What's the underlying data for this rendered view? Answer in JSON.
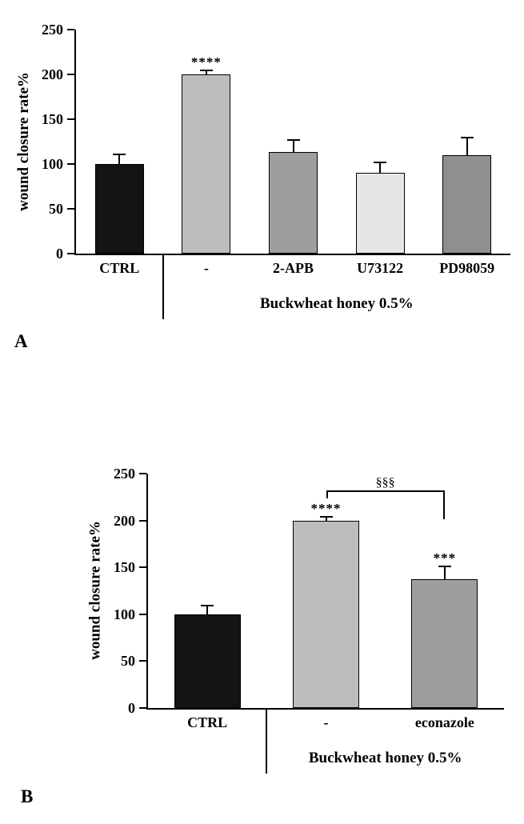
{
  "figure": {
    "background": "#ffffff",
    "panels": [
      {
        "letter": "A"
      },
      {
        "letter": "B"
      }
    ]
  },
  "chart_data": [
    {
      "type": "bar",
      "panel": "A",
      "title": "",
      "ylabel": "wound closure rate%",
      "xlabel": "",
      "ylim": [
        0,
        250
      ],
      "yticks": [
        0,
        50,
        100,
        150,
        200,
        250
      ],
      "categories": [
        "CTRL",
        "-",
        "2-APB",
        "U73122",
        "PD98059"
      ],
      "values": [
        100,
        200,
        113,
        90,
        110
      ],
      "errors_upper": [
        10,
        4,
        13,
        11,
        19
      ],
      "bar_colors": [
        "#141414",
        "#bdbdbd",
        "#9e9e9e",
        "#e6e6e6",
        "#8f8f8f"
      ],
      "significance": [
        "",
        "****",
        "",
        "",
        ""
      ],
      "group_label": "Buckwheat honey 0.5%",
      "group_start_index": 1,
      "grid": false,
      "legend": null
    },
    {
      "type": "bar",
      "panel": "B",
      "title": "",
      "ylabel": "wound closure rate%",
      "xlabel": "",
      "ylim": [
        0,
        250
      ],
      "yticks": [
        0,
        50,
        100,
        150,
        200,
        250
      ],
      "categories": [
        "CTRL",
        "-",
        "econazole"
      ],
      "values": [
        100,
        200,
        137
      ],
      "errors_upper": [
        8,
        3,
        13
      ],
      "bar_colors": [
        "#141414",
        "#bdbdbd",
        "#9e9e9e"
      ],
      "significance": [
        "",
        "****",
        "***"
      ],
      "group_label": "Buckwheat honey 0.5%",
      "group_start_index": 1,
      "comparison": {
        "from_index": 1,
        "to_index": 2,
        "label": "§§§",
        "y_value": 230
      },
      "grid": false,
      "legend": null
    }
  ]
}
